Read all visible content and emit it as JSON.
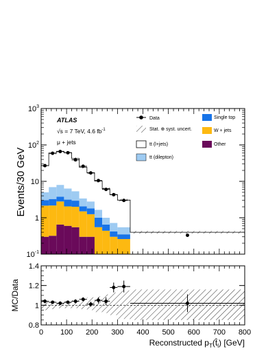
{
  "chart_data": [
    {
      "type": "bar",
      "stacked": true,
      "log_y": true,
      "ylabel": "Events/30 GeV",
      "xlim": [
        0,
        800
      ],
      "ylim": [
        0.1,
        1000
      ],
      "bin_edges": [
        0,
        30,
        60,
        90,
        120,
        150,
        180,
        210,
        240,
        270,
        300,
        350,
        800
      ],
      "series": [
        {
          "name": "Other",
          "color": "#6a0a5a",
          "values": [
            0.3,
            0.32,
            0.65,
            0.6,
            0.55,
            0.3,
            0.3,
            0.1,
            0.1,
            0.1,
            0.1,
            0.1
          ]
        },
        {
          "name": "W + jets",
          "color": "#fdb911",
          "values": [
            1.85,
            1.85,
            2.15,
            1.45,
            1.45,
            1.2,
            0.95,
            0.45,
            0.34,
            0.2,
            0.16,
            0.0
          ]
        },
        {
          "name": "Single top",
          "color": "#1874e8",
          "values": [
            0.9,
            1.1,
            1.0,
            1.1,
            0.95,
            0.55,
            0.55,
            0.45,
            0.21,
            0.12,
            0.09,
            0.0
          ]
        },
        {
          "name": "tt (dilepton)",
          "color": "#9ecbf2",
          "values": [
            1.95,
            3.7,
            4.2,
            3.2,
            2.4,
            1.35,
            1.0,
            0.65,
            0.35,
            0.3,
            0.2,
            0.0
          ]
        },
        {
          "name": "tt (l+jets)",
          "color": "#ffffff",
          "values": [
            22.0,
            53.0,
            59.0,
            55.0,
            37.0,
            21.0,
            14.5,
            8.5,
            5.3,
            3.6,
            2.5,
            0.3
          ]
        }
      ],
      "data_points": {
        "name": "Data",
        "x": [
          15,
          45,
          75,
          105,
          135,
          165,
          195,
          225,
          255,
          285,
          325,
          575
        ],
        "y": [
          27,
          59,
          66,
          61,
          39,
          26,
          17,
          10.5,
          6,
          4.3,
          3.0,
          0.33
        ]
      },
      "legend": [
        {
          "label": "Data",
          "kind": "marker"
        },
        {
          "label": "Stat. ⊕ syst. uncert.",
          "kind": "hatch"
        },
        {
          "label": "tt (l+jets)",
          "kind": "box",
          "color": "#ffffff"
        },
        {
          "label": "tt (dilepton)",
          "kind": "box",
          "color": "#9ecbf2"
        },
        {
          "label": "Single top",
          "kind": "box",
          "color": "#1874e8"
        },
        {
          "label": "W + jets",
          "kind": "box",
          "color": "#fdb911"
        },
        {
          "label": "Other",
          "kind": "box",
          "color": "#6a0a5a"
        }
      ],
      "annotations": {
        "experiment": "ATLAS",
        "energy": "√s = 7 TeV, 4.6 fb",
        "energy_sup": "-1",
        "channel": "μ + jets"
      },
      "y_ticks": [
        {
          "value": 0.1,
          "label": "10",
          "sup": "-1"
        },
        {
          "value": 1,
          "label": "1",
          "sup": ""
        },
        {
          "value": 10,
          "label": "10",
          "sup": ""
        },
        {
          "value": 100,
          "label": "10",
          "sup": "2"
        },
        {
          "value": 1000,
          "label": "10",
          "sup": "3"
        }
      ]
    },
    {
      "type": "scatter",
      "ylabel": "MC/Data",
      "xlabel": "Reconstructed p",
      "xlabel_sub": "T",
      "xlabel_tail": "(t̂",
      "xlabel_tail_sub": "l",
      "xlabel_end": ") [GeV]",
      "xlim": [
        0,
        800
      ],
      "ylim": [
        0.8,
        1.4
      ],
      "x_ticks": [
        "0",
        "100",
        "200",
        "300",
        "400",
        "500",
        "600",
        "700",
        "800"
      ],
      "y_ticks": [
        "0.8",
        "1",
        "1.2",
        "1.4"
      ],
      "ratio_points": {
        "x": [
          15,
          45,
          75,
          105,
          135,
          165,
          195,
          225,
          255,
          285,
          325,
          575
        ],
        "y": [
          1.04,
          1.03,
          1.02,
          1.03,
          1.04,
          1.06,
          1.01,
          1.05,
          1.04,
          1.18,
          1.19,
          1.02
        ],
        "err": [
          0.02,
          0.015,
          0.015,
          0.015,
          0.02,
          0.02,
          0.025,
          0.03,
          0.04,
          0.05,
          0.06,
          0.09
        ]
      },
      "band_edges": [
        0,
        30,
        60,
        90,
        120,
        150,
        180,
        210,
        240,
        270,
        300,
        350,
        800
      ],
      "band_low": [
        0.95,
        0.96,
        0.97,
        0.97,
        0.97,
        0.96,
        0.95,
        0.93,
        0.92,
        0.9,
        0.86,
        0.85
      ],
      "band_high": [
        1.05,
        1.04,
        1.04,
        1.04,
        1.05,
        1.06,
        1.08,
        1.09,
        1.11,
        1.13,
        1.15,
        1.16
      ]
    }
  ]
}
